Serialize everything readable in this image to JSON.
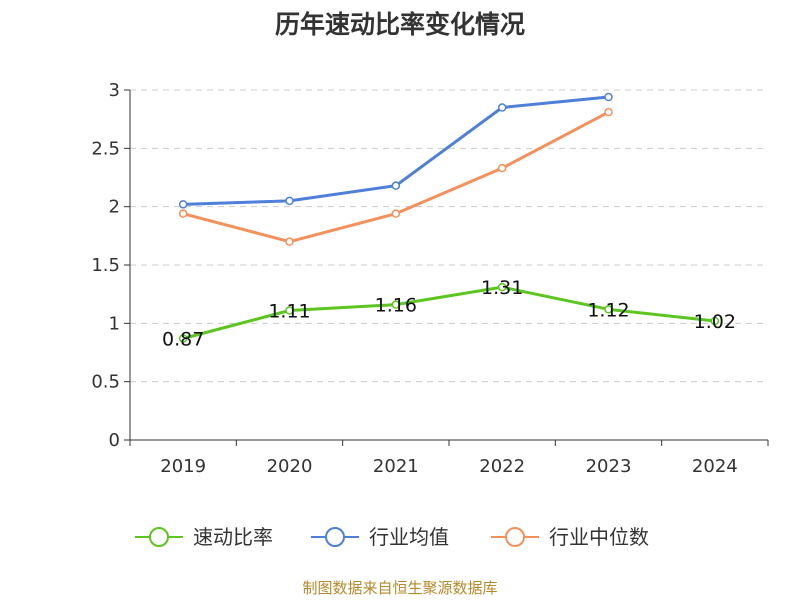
{
  "chart_data": {
    "type": "line",
    "title": "历年速动比率变化情况",
    "categories": [
      "2019",
      "2020",
      "2021",
      "2022",
      "2023",
      "2024"
    ],
    "ylim": [
      0,
      3
    ],
    "yticks": [
      "0",
      "0.5",
      "1",
      "1.5",
      "2",
      "2.5",
      "3"
    ],
    "grid": true,
    "legend_position": "bottom",
    "series": [
      {
        "name": "速动比率",
        "color": "#5cc61e",
        "values": [
          0.87,
          1.11,
          1.16,
          1.31,
          1.12,
          1.02
        ],
        "labels": [
          "0.87",
          "1.11",
          "1.16",
          "1.31",
          "1.12",
          "1.02"
        ]
      },
      {
        "name": "行业均值",
        "color": "#4e7fd9",
        "values": [
          2.02,
          2.05,
          2.18,
          2.85,
          2.94,
          null
        ]
      },
      {
        "name": "行业中位数",
        "color": "#f6905a",
        "values": [
          1.94,
          1.7,
          1.94,
          2.33,
          2.81,
          null
        ]
      }
    ]
  },
  "source": "制图数据来自恒生聚源数据库"
}
